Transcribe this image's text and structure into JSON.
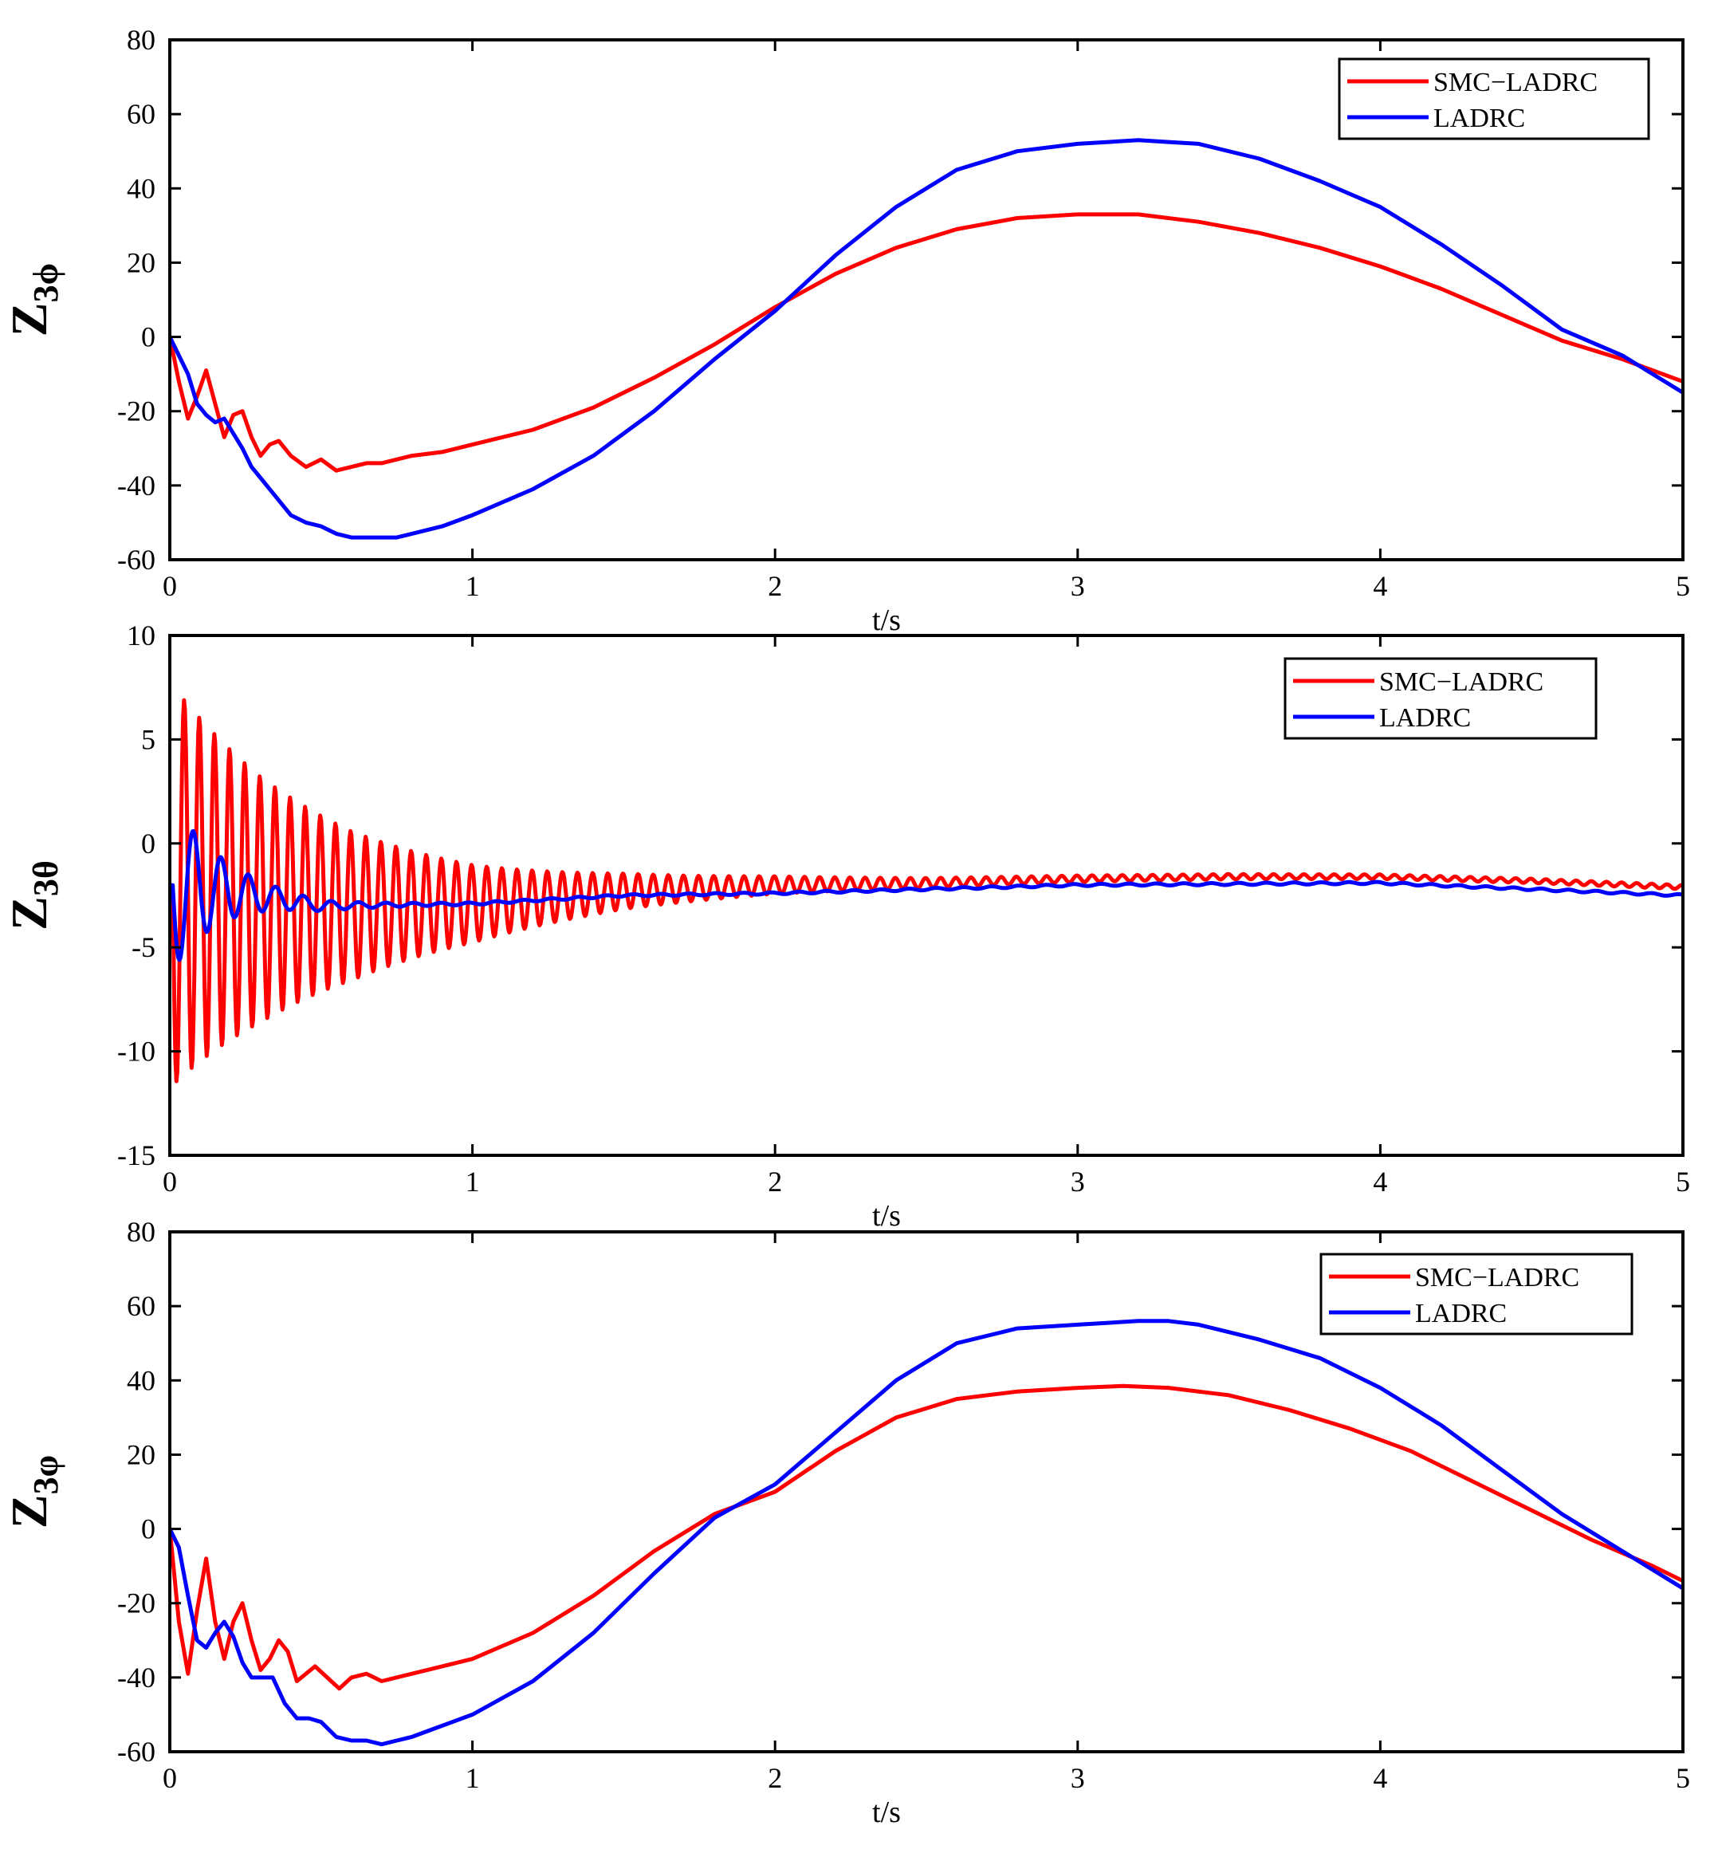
{
  "chart_data": [
    {
      "type": "line",
      "ylabel_main": "Z",
      "ylabel_sub": "3ϕ",
      "xlabel": "t/s",
      "xlim": [
        0,
        5
      ],
      "ylim": [
        -60,
        80
      ],
      "xticks": [
        0,
        1,
        2,
        3,
        4,
        5
      ],
      "yticks": [
        -60,
        -40,
        -20,
        0,
        20,
        40,
        60,
        80
      ],
      "legend_position": "top-right",
      "series": [
        {
          "name": "SMC−LADRC",
          "color": "#ff0000",
          "x": [
            0,
            0.03,
            0.06,
            0.09,
            0.12,
            0.15,
            0.18,
            0.21,
            0.24,
            0.27,
            0.3,
            0.33,
            0.36,
            0.4,
            0.45,
            0.5,
            0.55,
            0.6,
            0.65,
            0.7,
            0.8,
            0.9,
            1.0,
            1.2,
            1.4,
            1.6,
            1.8,
            2.0,
            2.2,
            2.4,
            2.6,
            2.8,
            3.0,
            3.1,
            3.2,
            3.4,
            3.6,
            3.8,
            4.0,
            4.2,
            4.4,
            4.6,
            4.8,
            5.0
          ],
          "y": [
            0,
            -12,
            -22,
            -16,
            -9,
            -18,
            -27,
            -21,
            -20,
            -27,
            -32,
            -29,
            -28,
            -32,
            -35,
            -33,
            -36,
            -35,
            -34,
            -34,
            -32,
            -31,
            -29,
            -25,
            -19,
            -11,
            -2,
            8,
            17,
            24,
            29,
            32,
            33,
            33,
            33,
            31,
            28,
            24,
            19,
            13,
            6,
            -1,
            -6,
            -12
          ]
        },
        {
          "name": "LADRC",
          "color": "#0000ff",
          "x": [
            0,
            0.03,
            0.06,
            0.09,
            0.12,
            0.15,
            0.18,
            0.21,
            0.24,
            0.27,
            0.3,
            0.35,
            0.4,
            0.45,
            0.5,
            0.55,
            0.6,
            0.65,
            0.7,
            0.75,
            0.8,
            0.9,
            1.0,
            1.2,
            1.4,
            1.6,
            1.8,
            2.0,
            2.2,
            2.4,
            2.6,
            2.8,
            3.0,
            3.1,
            3.2,
            3.3,
            3.4,
            3.6,
            3.8,
            4.0,
            4.2,
            4.4,
            4.6,
            4.8,
            5.0
          ],
          "y": [
            0,
            -5,
            -10,
            -18,
            -21,
            -23,
            -22,
            -26,
            -30,
            -35,
            -38,
            -43,
            -48,
            -50,
            -51,
            -53,
            -54,
            -54,
            -54,
            -54,
            -53,
            -51,
            -48,
            -41,
            -32,
            -20,
            -6,
            7,
            22,
            35,
            45,
            50,
            52,
            52.5,
            53,
            52.5,
            52,
            48,
            42,
            35,
            25,
            14,
            2,
            -5,
            -15
          ]
        }
      ]
    },
    {
      "type": "line",
      "ylabel_main": "Z",
      "ylabel_sub": "3θ",
      "xlabel": "t/s",
      "xlim": [
        0,
        5
      ],
      "ylim": [
        -15,
        10
      ],
      "xticks": [
        0,
        1,
        2,
        3,
        4,
        5
      ],
      "yticks": [
        -15,
        -10,
        -5,
        0,
        5,
        10
      ],
      "legend_position": "top-right",
      "osc_series": [
        {
          "name": "SMC−LADRC",
          "color": "#ff0000",
          "t0": 0.01,
          "amp0": 9.5,
          "decay": 1.7,
          "freq": 20,
          "amp_floor": 0.1,
          "base": [
            [
              0,
              -2
            ],
            [
              0.3,
              -2.7
            ],
            [
              0.6,
              -3.0
            ],
            [
              1.0,
              -2.9
            ],
            [
              1.5,
              -2.3
            ],
            [
              2.0,
              -2.0
            ],
            [
              2.5,
              -1.9
            ],
            [
              3.0,
              -1.7
            ],
            [
              3.5,
              -1.6
            ],
            [
              4.0,
              -1.6
            ],
            [
              4.5,
              -1.8
            ],
            [
              5.0,
              -2.1
            ]
          ]
        },
        {
          "name": "LADRC",
          "color": "#0000ff",
          "t0": 0.01,
          "amp0": 4.0,
          "decay": 6.0,
          "freq": 11,
          "amp_floor": 0.05,
          "base": [
            [
              0,
              -2
            ],
            [
              0.2,
              -2.3
            ],
            [
              0.5,
              -3.0
            ],
            [
              1.0,
              -2.9
            ],
            [
              1.5,
              -2.5
            ],
            [
              2.0,
              -2.4
            ],
            [
              3.0,
              -2.0
            ],
            [
              4.0,
              -1.9
            ],
            [
              5.0,
              -2.5
            ]
          ]
        }
      ]
    },
    {
      "type": "line",
      "ylabel_main": "Z",
      "ylabel_sub": "3φ",
      "xlabel": "t/s",
      "xlim": [
        0,
        5
      ],
      "ylim": [
        -60,
        80
      ],
      "xticks": [
        0,
        1,
        2,
        3,
        4,
        5
      ],
      "yticks": [
        -60,
        -40,
        -20,
        0,
        20,
        40,
        60,
        80
      ],
      "legend_position": "top-right",
      "series": [
        {
          "name": "SMC−LADRC",
          "color": "#ff0000",
          "x": [
            0,
            0.03,
            0.06,
            0.09,
            0.12,
            0.15,
            0.18,
            0.21,
            0.24,
            0.27,
            0.3,
            0.33,
            0.36,
            0.39,
            0.42,
            0.45,
            0.48,
            0.52,
            0.56,
            0.6,
            0.65,
            0.7,
            0.8,
            0.9,
            1.0,
            1.2,
            1.4,
            1.6,
            1.8,
            2.0,
            2.2,
            2.4,
            2.6,
            2.8,
            3.0,
            3.15,
            3.3,
            3.5,
            3.7,
            3.9,
            4.1,
            4.3,
            4.5,
            4.7,
            4.9,
            5.0
          ],
          "y": [
            0,
            -25,
            -39,
            -22,
            -8,
            -25,
            -35,
            -25,
            -20,
            -30,
            -38,
            -35,
            -30,
            -33,
            -41,
            -39,
            -37,
            -40,
            -43,
            -40,
            -39,
            -41,
            -39,
            -37,
            -35,
            -28,
            -18,
            -6,
            4,
            10,
            21,
            30,
            35,
            37,
            38,
            38.5,
            38,
            36,
            32,
            27,
            21,
            13,
            5,
            -3,
            -10,
            -14
          ]
        },
        {
          "name": "LADRC",
          "color": "#0000ff",
          "x": [
            0,
            0.03,
            0.06,
            0.09,
            0.12,
            0.15,
            0.18,
            0.21,
            0.24,
            0.27,
            0.3,
            0.34,
            0.38,
            0.42,
            0.46,
            0.5,
            0.55,
            0.6,
            0.65,
            0.7,
            0.75,
            0.8,
            0.9,
            1.0,
            1.2,
            1.4,
            1.6,
            1.8,
            2.0,
            2.2,
            2.4,
            2.6,
            2.8,
            3.0,
            3.1,
            3.2,
            3.3,
            3.4,
            3.6,
            3.8,
            4.0,
            4.2,
            4.4,
            4.6,
            4.8,
            5.0
          ],
          "y": [
            0,
            -5,
            -18,
            -30,
            -32,
            -28,
            -25,
            -29,
            -36,
            -40,
            -40,
            -40,
            -47,
            -51,
            -51,
            -52,
            -56,
            -57,
            -57,
            -58,
            -57,
            -56,
            -53,
            -50,
            -41,
            -28,
            -12,
            3,
            12,
            26,
            40,
            50,
            54,
            55,
            55.5,
            56,
            56,
            55,
            51,
            46,
            38,
            28,
            16,
            4,
            -6,
            -16
          ]
        }
      ]
    }
  ]
}
